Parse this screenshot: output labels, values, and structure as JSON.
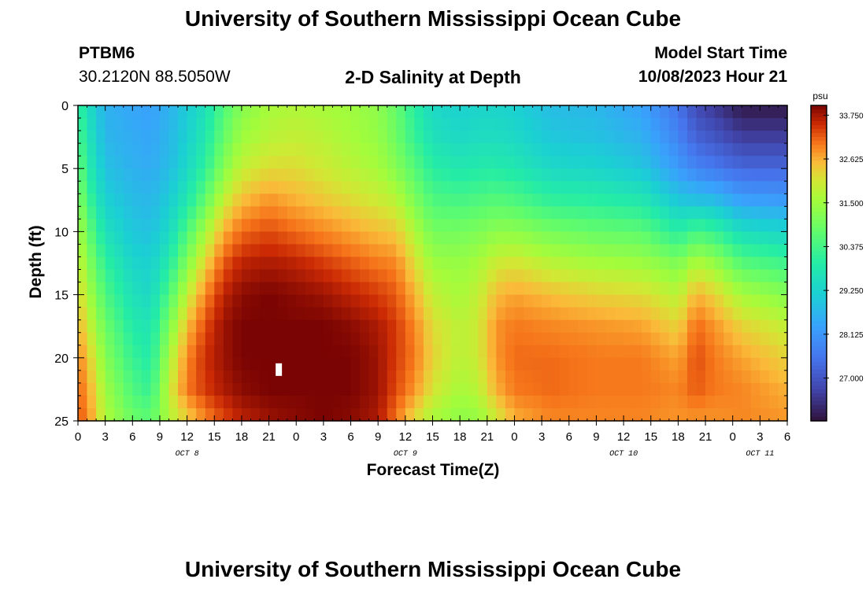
{
  "page": {
    "title": "University of Southern Mississippi Ocean Cube",
    "footer_title": "University of Southern Mississippi Ocean Cube",
    "station_id": "PTBM6",
    "station_coords": "30.2120N  88.5050W",
    "subtitle": "2-D Salinity at Depth",
    "model_start_label": "Model Start Time",
    "model_start_value": "10/08/2023 Hour 21"
  },
  "chart_data": {
    "type": "heatmap",
    "title": "2-D Salinity at Depth",
    "xlabel": "Forecast Time(Z)",
    "ylabel": "Depth (ft)",
    "colorbar_label": "psu",
    "colorbar_ticks": [
      "33.750",
      "32.625",
      "31.500",
      "30.375",
      "29.250",
      "28.125",
      "27.000"
    ],
    "colorbar_values": [
      33.75,
      32.625,
      31.5,
      30.375,
      29.25,
      28.125,
      27.0
    ],
    "value_range": [
      25.9,
      34.0
    ],
    "x_range_hours": [
      0,
      78
    ],
    "y_range_ft": [
      0,
      25
    ],
    "y_ticks": [
      "0",
      "5",
      "10",
      "15",
      "20",
      "25"
    ],
    "x_tick_labels": [
      "0",
      "3",
      "6",
      "9",
      "12",
      "15",
      "18",
      "21",
      "0",
      "3",
      "6",
      "9",
      "12",
      "15",
      "18",
      "21",
      "0",
      "3",
      "6",
      "9",
      "12",
      "15",
      "18",
      "21",
      "0",
      "3",
      "6"
    ],
    "day_labels": [
      {
        "text": "OCT 8",
        "hour": 12
      },
      {
        "text": "OCT 9",
        "hour": 36
      },
      {
        "text": "OCT 10",
        "hour": 60
      },
      {
        "text": "OCT 11",
        "hour": 75
      }
    ],
    "missing_cell": {
      "hour": 22,
      "depth_ft": 21
    },
    "profiles": [
      {
        "hour": 0,
        "salinity": [
          30.2,
          30.5,
          30.9,
          31.3,
          31.7,
          32.0,
          32.3,
          32.6,
          32.9,
          33.1,
          33.2
        ]
      },
      {
        "hour": 1,
        "salinity": [
          29.6,
          29.8,
          30.0,
          30.4,
          30.9,
          31.3,
          31.7,
          32.1,
          32.5,
          32.8,
          33.0
        ]
      },
      {
        "hour": 3,
        "salinity": [
          28.6,
          28.7,
          28.9,
          29.2,
          29.6,
          30.1,
          30.5,
          30.9,
          31.2,
          31.5,
          31.7
        ]
      },
      {
        "hour": 6,
        "salinity": [
          28.4,
          28.5,
          28.6,
          28.8,
          29.0,
          29.3,
          29.6,
          29.9,
          30.2,
          30.5,
          30.9
        ]
      },
      {
        "hour": 8,
        "salinity": [
          28.3,
          28.4,
          28.5,
          28.7,
          28.9,
          29.2,
          29.4,
          29.7,
          29.9,
          30.2,
          30.7
        ]
      },
      {
        "hour": 10,
        "salinity": [
          28.6,
          28.7,
          28.8,
          29.1,
          29.4,
          29.9,
          30.5,
          31.1,
          31.6,
          31.9,
          31.7
        ]
      },
      {
        "hour": 12,
        "salinity": [
          29.1,
          29.2,
          29.4,
          29.8,
          30.5,
          31.2,
          31.9,
          32.5,
          32.9,
          33.0,
          32.3
        ]
      },
      {
        "hour": 14,
        "salinity": [
          29.6,
          29.8,
          30.1,
          30.8,
          31.6,
          32.3,
          32.9,
          33.3,
          33.5,
          33.4,
          32.9
        ]
      },
      {
        "hour": 16,
        "salinity": [
          30.5,
          30.8,
          31.2,
          31.9,
          32.6,
          33.2,
          33.6,
          33.8,
          33.8,
          33.7,
          33.3
        ]
      },
      {
        "hour": 18,
        "salinity": [
          31.2,
          31.5,
          31.9,
          32.5,
          33.1,
          33.6,
          33.9,
          34.0,
          34.0,
          33.9,
          33.6
        ]
      },
      {
        "hour": 21,
        "salinity": [
          31.6,
          31.8,
          32.2,
          32.8,
          33.3,
          33.7,
          34.0,
          34.0,
          34.0,
          34.0,
          33.8
        ]
      },
      {
        "hour": 24,
        "salinity": [
          31.7,
          31.9,
          32.2,
          32.6,
          33.1,
          33.6,
          33.9,
          34.0,
          34.0,
          34.0,
          33.9
        ]
      },
      {
        "hour": 27,
        "salinity": [
          31.6,
          31.8,
          32.0,
          32.4,
          32.9,
          33.4,
          33.8,
          34.0,
          34.0,
          34.0,
          34.0
        ]
      },
      {
        "hour": 30,
        "salinity": [
          31.5,
          31.6,
          31.8,
          32.2,
          32.7,
          33.2,
          33.6,
          33.9,
          34.0,
          34.0,
          33.9
        ]
      },
      {
        "hour": 33,
        "salinity": [
          31.3,
          31.4,
          31.6,
          32.0,
          32.5,
          33.0,
          33.4,
          33.7,
          33.8,
          33.8,
          33.7
        ]
      },
      {
        "hour": 35,
        "salinity": [
          30.8,
          30.9,
          31.2,
          31.8,
          32.4,
          32.9,
          33.2,
          33.4,
          33.4,
          33.3,
          33.0
        ]
      },
      {
        "hour": 37,
        "salinity": [
          30.0,
          30.2,
          30.6,
          31.1,
          31.7,
          32.2,
          32.6,
          32.9,
          33.0,
          32.8,
          32.2
        ]
      },
      {
        "hour": 39,
        "salinity": [
          29.4,
          29.6,
          30.0,
          30.5,
          31.0,
          31.5,
          31.9,
          32.2,
          32.3,
          32.1,
          31.6
        ]
      },
      {
        "hour": 42,
        "salinity": [
          29.2,
          29.4,
          29.8,
          30.4,
          31.0,
          31.4,
          31.6,
          31.8,
          31.8,
          31.6,
          31.3
        ]
      },
      {
        "hour": 44,
        "salinity": [
          29.3,
          29.5,
          29.9,
          30.5,
          31.1,
          31.6,
          31.9,
          32.0,
          32.0,
          31.8,
          31.4
        ]
      },
      {
        "hour": 46,
        "salinity": [
          29.3,
          29.5,
          29.9,
          30.6,
          31.3,
          32.0,
          32.5,
          32.8,
          32.8,
          32.6,
          32.0
        ]
      },
      {
        "hour": 48,
        "salinity": [
          29.2,
          29.4,
          29.8,
          30.5,
          31.3,
          32.1,
          32.7,
          33.0,
          33.1,
          33.0,
          32.6
        ]
      },
      {
        "hour": 52,
        "salinity": [
          28.8,
          29.0,
          29.4,
          30.1,
          31.0,
          31.8,
          32.5,
          32.9,
          33.1,
          33.1,
          32.9
        ]
      },
      {
        "hour": 57,
        "salinity": [
          28.7,
          28.9,
          29.3,
          30.0,
          30.8,
          31.6,
          32.3,
          32.8,
          33.0,
          33.0,
          32.9
        ]
      },
      {
        "hour": 62,
        "salinity": [
          28.3,
          28.6,
          29.0,
          29.8,
          30.7,
          31.5,
          32.2,
          32.7,
          33.0,
          33.0,
          32.9
        ]
      },
      {
        "hour": 66,
        "salinity": [
          27.5,
          27.8,
          28.2,
          29.0,
          30.0,
          31.1,
          31.8,
          32.3,
          32.7,
          32.9,
          32.8
        ]
      },
      {
        "hour": 68,
        "salinity": [
          26.8,
          27.2,
          27.8,
          28.9,
          30.4,
          31.7,
          32.6,
          33.1,
          33.3,
          33.2,
          32.8
        ]
      },
      {
        "hour": 70,
        "salinity": [
          26.5,
          27.0,
          27.6,
          28.8,
          30.2,
          31.4,
          32.3,
          32.8,
          33.0,
          33.0,
          32.8
        ]
      },
      {
        "hour": 73,
        "salinity": [
          26.0,
          26.6,
          27.3,
          28.3,
          29.5,
          30.6,
          31.6,
          32.3,
          32.7,
          32.9,
          32.9
        ]
      },
      {
        "hour": 78,
        "salinity": [
          26.0,
          26.6,
          27.3,
          28.2,
          29.3,
          30.3,
          31.2,
          31.9,
          32.3,
          32.6,
          32.8
        ]
      }
    ]
  }
}
